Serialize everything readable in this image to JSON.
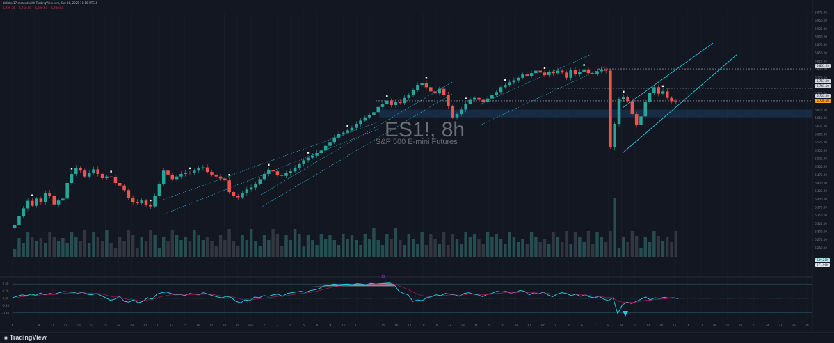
{
  "header": {
    "credit": "dalister17 created with TradingView.com, Oct 16, 2025 10:18 UTC-4",
    "ohlc": [
      "6,729.75",
      "6,750.50",
      "6,690.50",
      "6,700.50"
    ]
  },
  "watermark": {
    "symbol": "ES1!, 8h",
    "name": "S&P 500 E-mini Futures"
  },
  "footer": {
    "logo": "TradingView"
  },
  "colors": {
    "bg": "#131722",
    "up": "#26a69a",
    "down": "#ef5350",
    "channel": "#26c6da",
    "zone": "#1a3a5c",
    "indicator": "#1ecbe1",
    "signal": "#c2185b"
  },
  "price_tags": {
    "levels": [
      "6,801.25",
      "6,757.00",
      "6,741.50",
      "6,703.00"
    ],
    "last": "6,700.50",
    "volume": [
      "639.28K",
      "571.96K"
    ]
  },
  "chart_data": [
    {
      "type": "candlestick",
      "title": "ES1!, 8h",
      "subtitle": "S&P 500 E-mini Futures",
      "ylim": [
        6225,
        6975
      ],
      "y_ticks": [
        "6,975.00",
        "6,950.00",
        "6,925.00",
        "6,900.00",
        "6,875.00",
        "6,850.00",
        "6,825.00",
        "6,800.00",
        "6,775.00",
        "6,750.00",
        "6,725.00",
        "6,700.00",
        "6,675.00",
        "6,650.00",
        "6,625.00",
        "6,600.00",
        "6,575.00",
        "6,550.00",
        "6,525.00",
        "6,500.00",
        "6,475.00",
        "6,450.00",
        "6,425.00",
        "6,400.00",
        "6,375.00",
        "6,350.00",
        "6,325.00",
        "6,300.00",
        "6,275.00",
        "6,250.00"
      ],
      "x_ticks": [
        "6",
        "7",
        "8",
        "11",
        "12",
        "13",
        "14",
        "15",
        "18",
        "19",
        "20",
        "21",
        "22",
        "25",
        "26",
        "27",
        "28",
        "29",
        "Sep",
        "2",
        "3",
        "4",
        "5",
        "8",
        "9",
        "10",
        "11",
        "12",
        "15",
        "16",
        "17",
        "18",
        "19",
        "22",
        "23",
        "24",
        "25",
        "26",
        "29",
        "30",
        "Oct",
        "2",
        "3",
        "6",
        "7",
        "8",
        "9",
        "10",
        "13",
        "14",
        "15",
        "16",
        "17",
        "20",
        "21",
        "22",
        "23",
        "24",
        "27",
        "28",
        "29"
      ],
      "closes": [
        6320,
        6348,
        6372,
        6395,
        6380,
        6402,
        6390,
        6420,
        6410,
        6384,
        6396,
        6402,
        6450,
        6478,
        6496,
        6488,
        6470,
        6482,
        6492,
        6478,
        6465,
        6470,
        6468,
        6450,
        6442,
        6428,
        6405,
        6392,
        6388,
        6396,
        6382,
        6378,
        6410,
        6448,
        6488,
        6476,
        6462,
        6470,
        6478,
        6482,
        6480,
        6488,
        6496,
        6498,
        6484,
        6476,
        6470,
        6464,
        6458,
        6422,
        6410,
        6406,
        6418,
        6430,
        6436,
        6448,
        6462,
        6478,
        6490,
        6486,
        6475,
        6472,
        6480,
        6486,
        6496,
        6508,
        6520,
        6528,
        6534,
        6542,
        6550,
        6564,
        6576,
        6590,
        6602,
        6605,
        6612,
        6620,
        6632,
        6642,
        6652,
        6658,
        6668,
        6684,
        6692,
        6704,
        6690,
        6700,
        6696,
        6712,
        6722,
        6736,
        6752,
        6758,
        6745,
        6732,
        6726,
        6740,
        6722,
        6686,
        6652,
        6662,
        6676,
        6694,
        6706,
        6712,
        6706,
        6700,
        6710,
        6722,
        6730,
        6745,
        6752,
        6760,
        6766,
        6774,
        6784,
        6780,
        6788,
        6796,
        6790,
        6782,
        6792,
        6788,
        6796,
        6790,
        6774,
        6798,
        6784,
        6792,
        6800,
        6788,
        6786,
        6794,
        6800,
        6796,
        6560,
        6632,
        6708,
        6714,
        6702,
        6662,
        6628,
        6655,
        6700,
        6728,
        6745,
        6725,
        6732,
        6712,
        6702,
        6700
      ],
      "overlay_zone": [
        6652,
        6676
      ],
      "levels": [
        6801.25,
        6757.0,
        6741.5,
        6703.0
      ]
    },
    {
      "type": "line",
      "title": "",
      "series": [
        {
          "values": [
            0.02,
            0.06,
            0.1,
            0.08,
            0.12,
            0.09,
            0.15,
            0.1,
            0.14,
            0.12,
            0.16,
            0.19,
            0.18,
            0.17,
            0.14,
            0.18,
            0.12,
            0.1,
            0.14,
            0.08,
            0.02,
            -0.05,
            -0.02,
            0.06,
            -0.08,
            -0.1,
            -0.04,
            -0.12,
            -0.08,
            0.02,
            -0.02,
            0.12,
            0.16,
            0.18,
            0.14,
            0.1,
            0.12,
            0.08,
            0.14,
            0.12,
            0.1,
            0.16,
            0.12,
            0.08,
            0.04,
            0.02,
            0.06,
            0.02,
            -0.08,
            -0.12,
            -0.04,
            -0.06,
            0.04,
            0.02,
            0.08,
            0.06,
            0.1,
            0.12,
            0.06,
            0.14,
            0.16,
            0.18,
            0.2,
            0.17,
            0.22,
            0.24,
            0.28,
            0.35,
            0.36,
            0.4,
            0.38,
            0.39,
            0.4,
            0.38,
            0.41,
            0.4,
            0.38,
            0.42,
            0.4,
            0.41,
            0.42,
            0.43,
            0.38,
            0.2,
            0.14,
            0.1,
            -0.08,
            -0.04,
            -0.06,
            0.02,
            0.05,
            0.1,
            0.08,
            0.14,
            0.12,
            0.1,
            0.06,
            0.14,
            0.16,
            0.12,
            0.1,
            0.05,
            0.12,
            0.14,
            0.2,
            0.18,
            0.2,
            0.15,
            0.17,
            0.22,
            0.2,
            0.1,
            0.16,
            0.12,
            0.18,
            0.1,
            0.05,
            0.12,
            0.16,
            0.14,
            0.08,
            0.12,
            0.06,
            0.1,
            0.04,
            0.02,
            0.06,
            -0.02,
            -0.06,
            0.02,
            -0.42,
            -0.18,
            -0.1,
            -0.14,
            -0.08,
            -0.02,
            0.04,
            -0.04,
            0.02,
            0.0,
            0.03,
            0.01,
            0.02,
            -0.01
          ]
        },
        {
          "values": [
            0.0,
            0.02,
            0.05,
            0.06,
            0.08,
            0.08,
            0.1,
            0.1,
            0.11,
            0.11,
            0.12,
            0.14,
            0.15,
            0.15,
            0.15,
            0.16,
            0.15,
            0.14,
            0.14,
            0.13,
            0.1,
            0.06,
            0.04,
            0.04,
            0.0,
            -0.03,
            -0.03,
            -0.06,
            -0.06,
            -0.04,
            -0.03,
            0.01,
            0.05,
            0.08,
            0.1,
            0.1,
            0.1,
            0.1,
            0.11,
            0.11,
            0.11,
            0.12,
            0.12,
            0.11,
            0.09,
            0.07,
            0.07,
            0.05,
            0.02,
            -0.02,
            -0.03,
            -0.04,
            -0.02,
            -0.01,
            0.01,
            0.02,
            0.04,
            0.06,
            0.06,
            0.08,
            0.1,
            0.12,
            0.14,
            0.15,
            0.17,
            0.19,
            0.22,
            0.26,
            0.29,
            0.32,
            0.34,
            0.35,
            0.36,
            0.37,
            0.38,
            0.38,
            0.38,
            0.39,
            0.39,
            0.4,
            0.4,
            0.41,
            0.4,
            0.35,
            0.3,
            0.25,
            0.18,
            0.12,
            0.08,
            0.06,
            0.06,
            0.07,
            0.07,
            0.09,
            0.1,
            0.1,
            0.09,
            0.1,
            0.12,
            0.12,
            0.12,
            0.1,
            0.11,
            0.12,
            0.14,
            0.15,
            0.16,
            0.16,
            0.16,
            0.18,
            0.18,
            0.16,
            0.16,
            0.15,
            0.16,
            0.14,
            0.12,
            0.12,
            0.13,
            0.13,
            0.12,
            0.12,
            0.1,
            0.1,
            0.08,
            0.06,
            0.06,
            0.04,
            0.02,
            0.02,
            -0.08,
            -0.1,
            -0.1,
            -0.11,
            -0.1,
            -0.08,
            -0.05,
            -0.05,
            -0.03,
            -0.02,
            -0.01,
            0.0,
            0.01,
            0.0
          ]
        }
      ],
      "hlines": [
        0.4,
        0.0,
        -0.4
      ],
      "ylim": [
        -0.5,
        0.5
      ],
      "y_ticks": [
        "0.40",
        "0.20",
        "0.00",
        "-0.20",
        "-0.40"
      ]
    }
  ]
}
